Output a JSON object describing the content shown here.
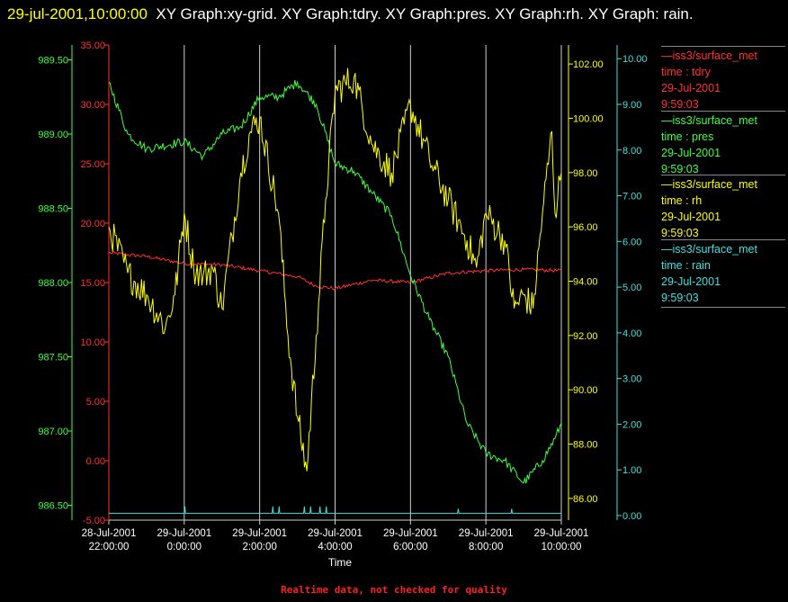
{
  "header": {
    "timestamp": "29-jul-2001,10:00:00",
    "text": "XY Graph:xy-grid.  XY Graph:tdry.  XY Graph:pres.  XY Graph:rh.  XY Graph: rain."
  },
  "legend": [
    {
      "name": "iss3/surface_met",
      "field": "time : tdry",
      "date": "29-Jul-2001",
      "time": "9:59:03",
      "color": "#ff3030"
    },
    {
      "name": "iss3/surface_met",
      "field": "time : pres",
      "date": "29-Jul-2001",
      "time": "9:59:03",
      "color": "#40ff40"
    },
    {
      "name": "iss3/surface_met",
      "field": "time : rh",
      "date": "29-Jul-2001",
      "time": "9:59:03",
      "color": "#ffff00"
    },
    {
      "name": "iss3/surface_met",
      "field": "time : rain",
      "date": "29-Jul-2001",
      "time": "9:59:03",
      "color": "#40e0e0"
    }
  ],
  "footer": {
    "note": "Realtime data, not checked for quality"
  },
  "chart_data": {
    "type": "line",
    "xlabel": "Time",
    "x_range": [
      "28-Jul-2001 22:00:00",
      "29-Jul-2001 10:00:00"
    ],
    "x_ticks": [
      {
        "date": "28-Jul-2001",
        "time": "22:00:00"
      },
      {
        "date": "29-Jul-2001",
        "time": "0:00:00"
      },
      {
        "date": "29-Jul-2001",
        "time": "2:00:00"
      },
      {
        "date": "29-Jul-2001",
        "time": "4:00:00"
      },
      {
        "date": "29-Jul-2001",
        "time": "6:00:00"
      },
      {
        "date": "29-Jul-2001",
        "time": "8:00:00"
      },
      {
        "date": "29-Jul-2001",
        "time": "10:00:00"
      }
    ],
    "grid": "vertical lines at each 2-hour tick",
    "axes": {
      "tdry": {
        "color": "#ff3030",
        "ylim": [
          -5,
          35
        ],
        "ticks": [
          "-5.00",
          "0.00",
          "5.00",
          "10.00",
          "15.00",
          "20.00",
          "25.00",
          "30.00",
          "35.00"
        ]
      },
      "pres": {
        "color": "#40ff40",
        "ylim": [
          986.4,
          989.6
        ],
        "ticks": [
          "986.50",
          "987.00",
          "987.50",
          "988.00",
          "988.50",
          "989.00",
          "989.50"
        ]
      },
      "rh": {
        "color": "#ffff00",
        "ylim": [
          85.2,
          102.7
        ],
        "ticks": [
          "86.00",
          "88.00",
          "90.00",
          "92.00",
          "94.00",
          "96.00",
          "98.00",
          "100.00",
          "102.00"
        ]
      },
      "rain": {
        "color": "#40e0e0",
        "ylim": [
          -0.1,
          10.3
        ],
        "ticks": [
          "0.00",
          "1.00",
          "2.00",
          "3.00",
          "4.00",
          "5.00",
          "6.00",
          "7.00",
          "8.00",
          "9.00",
          "10.00"
        ]
      }
    },
    "series": [
      {
        "name": "tdry",
        "axis": "tdry",
        "noise": 0.15,
        "x": [
          "28-Jul-2001 22:00",
          "28-Jul-2001 23:00",
          "29-Jul-2001 00:00",
          "29-Jul-2001 01:00",
          "29-Jul-2001 02:00",
          "29-Jul-2001 03:00",
          "29-Jul-2001 03:30",
          "29-Jul-2001 04:00",
          "29-Jul-2001 05:00",
          "29-Jul-2001 06:00",
          "29-Jul-2001 07:00",
          "29-Jul-2001 08:00",
          "29-Jul-2001 09:00",
          "29-Jul-2001 10:00"
        ],
        "y": [
          17.5,
          17.2,
          16.6,
          16.5,
          16.0,
          15.5,
          14.7,
          14.5,
          15.2,
          15.0,
          15.8,
          16.0,
          16.1,
          16.0
        ]
      },
      {
        "name": "pres",
        "axis": "pres",
        "noise": 0.03,
        "x": [
          "28-Jul-2001 22:00",
          "28-Jul-2001 22:30",
          "28-Jul-2001 23:00",
          "29-Jul-2001 00:00",
          "29-Jul-2001 00:30",
          "29-Jul-2001 01:00",
          "29-Jul-2001 01:30",
          "29-Jul-2001 02:00",
          "29-Jul-2001 02:30",
          "29-Jul-2001 03:00",
          "29-Jul-2001 03:30",
          "29-Jul-2001 04:00",
          "29-Jul-2001 04:30",
          "29-Jul-2001 05:00",
          "29-Jul-2001 05:30",
          "29-Jul-2001 06:00",
          "29-Jul-2001 06:30",
          "29-Jul-2001 07:00",
          "29-Jul-2001 07:30",
          "29-Jul-2001 08:00",
          "29-Jul-2001 08:30",
          "29-Jul-2001 09:00",
          "29-Jul-2001 09:30",
          "29-Jul-2001 09:50",
          "29-Jul-2001 10:00"
        ],
        "y": [
          989.35,
          989.0,
          988.9,
          988.95,
          988.85,
          989.0,
          989.05,
          989.25,
          989.25,
          989.35,
          989.2,
          988.8,
          988.75,
          988.6,
          988.45,
          988.05,
          987.75,
          987.5,
          987.05,
          986.85,
          986.8,
          986.65,
          986.8,
          986.95,
          987.05
        ]
      },
      {
        "name": "rh",
        "axis": "rh",
        "noise": 0.6,
        "x": [
          "28-Jul-2001 22:00",
          "28-Jul-2001 22:30",
          "28-Jul-2001 23:00",
          "28-Jul-2001 23:30",
          "28-Jul-2001 23:45",
          "29-Jul-2001 00:00",
          "29-Jul-2001 00:15",
          "29-Jul-2001 00:30",
          "29-Jul-2001 00:45",
          "29-Jul-2001 01:00",
          "29-Jul-2001 01:30",
          "29-Jul-2001 01:45",
          "29-Jul-2001 02:00",
          "29-Jul-2001 02:30",
          "29-Jul-2001 02:45",
          "29-Jul-2001 03:00",
          "29-Jul-2001 03:15",
          "29-Jul-2001 03:30",
          "29-Jul-2001 03:45",
          "29-Jul-2001 04:00",
          "29-Jul-2001 04:30",
          "29-Jul-2001 05:00",
          "29-Jul-2001 05:30",
          "29-Jul-2001 06:00",
          "29-Jul-2001 06:30",
          "29-Jul-2001 07:00",
          "29-Jul-2001 07:30",
          "29-Jul-2001 07:45",
          "29-Jul-2001 08:00",
          "29-Jul-2001 08:30",
          "29-Jul-2001 08:45",
          "29-Jul-2001 09:00",
          "29-Jul-2001 09:15",
          "29-Jul-2001 09:30",
          "29-Jul-2001 09:45",
          "29-Jul-2001 09:50",
          "29-Jul-2001 10:00"
        ],
        "y": [
          96.0,
          94.3,
          93.5,
          92.3,
          93.5,
          96.5,
          94.5,
          94.2,
          94.5,
          93.0,
          98.0,
          99.5,
          100.0,
          96.5,
          92.0,
          89.0,
          87.0,
          92.0,
          97.0,
          101.0,
          101.5,
          99.0,
          98.0,
          100.5,
          98.5,
          97.0,
          95.5,
          94.5,
          96.5,
          95.5,
          93.0,
          93.5,
          93.0,
          96.5,
          99.5,
          96.5,
          98.0
        ]
      },
      {
        "name": "rain",
        "axis": "rain",
        "noise": 0,
        "x": [
          "28-Jul-2001 22:00",
          "29-Jul-2001 00:00",
          "29-Jul-2001 00:01",
          "29-Jul-2001 00:02",
          "29-Jul-2001 02:20",
          "29-Jul-2001 02:21",
          "29-Jul-2001 02:22",
          "29-Jul-2001 02:30",
          "29-Jul-2001 02:31",
          "29-Jul-2001 02:32",
          "29-Jul-2001 03:10",
          "29-Jul-2001 03:11",
          "29-Jul-2001 03:12",
          "29-Jul-2001 03:20",
          "29-Jul-2001 03:21",
          "29-Jul-2001 03:22",
          "29-Jul-2001 03:35",
          "29-Jul-2001 03:36",
          "29-Jul-2001 03:37",
          "29-Jul-2001 03:45",
          "29-Jul-2001 03:46",
          "29-Jul-2001 03:47",
          "29-Jul-2001 07:15",
          "29-Jul-2001 07:16",
          "29-Jul-2001 07:17",
          "29-Jul-2001 08:40",
          "29-Jul-2001 08:41",
          "29-Jul-2001 08:42",
          "29-Jul-2001 10:00"
        ],
        "y": [
          0.05,
          0.05,
          0.2,
          0.05,
          0.05,
          0.2,
          0.05,
          0.05,
          0.2,
          0.05,
          0.05,
          0.2,
          0.05,
          0.05,
          0.2,
          0.05,
          0.05,
          0.2,
          0.05,
          0.05,
          0.2,
          0.05,
          0.05,
          0.15,
          0.05,
          0.05,
          0.15,
          0.05,
          0.05
        ]
      }
    ]
  }
}
